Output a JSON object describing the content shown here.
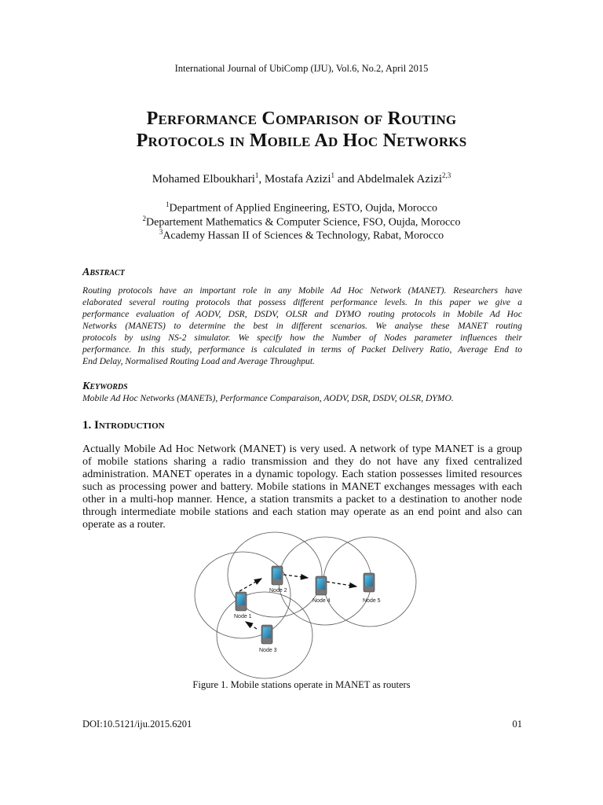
{
  "header": "International Journal of UbiComp (IJU), Vol.6, No.2, April 2015",
  "title": [
    "Performance Comparison of Routing",
    "Protocols in Mobile Ad Hoc Networks"
  ],
  "authors": [
    {
      "name": "Mohamed Elboukhari",
      "sup": "1"
    },
    {
      "name": "Mostafa Azizi",
      "sup": "1"
    },
    {
      "name": "Abdelmalek Azizi",
      "sup": "2,3"
    }
  ],
  "authors_sep": [
    ", ",
    " and "
  ],
  "affiliations": [
    {
      "sup": "1",
      "text": "Department of Applied Engineering, ESTO, Oujda, Morocco"
    },
    {
      "sup": "2",
      "text": "Departement Mathematics & Computer Science, FSO, Oujda, Morocco"
    },
    {
      "sup": "3",
      "text": "Academy Hassan II of Sciences & Technology, Rabat, Morocco"
    }
  ],
  "abstract": {
    "heading": "Abstract",
    "lines": [
      "Routing protocols have an important role in any Mobile Ad Hoc Network (MANET). Researchers have",
      "elaborated several routing protocols that possess different performance levels. In this paper we give a",
      "performance evaluation of AODV, DSR, DSDV, OLSR and DYMO routing protocols in Mobile Ad Hoc",
      "Networks (MANETS) to determine the best in different scenarios. We analyse these MANET routing",
      "protocols by using NS-2 simulator. We specify how the Number of Nodes parameter influences their",
      "performance. In this study, performance is calculated in terms of Packet Delivery Ratio, Average End to",
      "End Delay, Normalised Routing Load and Average Throughput."
    ]
  },
  "keywords": {
    "heading": "Keywords",
    "text": "Mobile Ad Hoc Networks (MANETs), Performance Comparaison, AODV, DSR, DSDV, OLSR, DYMO."
  },
  "introduction": {
    "heading": "1. Introduction",
    "lines": [
      "Actually Mobile Ad Hoc Network (MANET) is very used. A network of type MANET is a group",
      "of mobile stations sharing a radio transmission and they do not have any fixed centralized",
      "administration. MANET operates in a dynamic topology. Each station possesses limited resources",
      "such as processing power and battery. Mobile stations in MANET exchanges messages with each",
      "other in a multi-hop manner. Hence, a station transmits a packet to a destination to another node",
      "through intermediate mobile stations and each station may operate as an end point and also can",
      "operate as a router."
    ]
  },
  "figure": {
    "nodes": [
      "Node 1",
      "Node 2",
      "Node 3",
      "Node 4",
      "Node 5"
    ],
    "caption": "Figure 1.  Mobile stations operate in MANET as routers",
    "device_color": "#2a8fc0"
  },
  "footer": {
    "doi": "DOI:10.5121/iju.2015.6201",
    "page": "01"
  }
}
